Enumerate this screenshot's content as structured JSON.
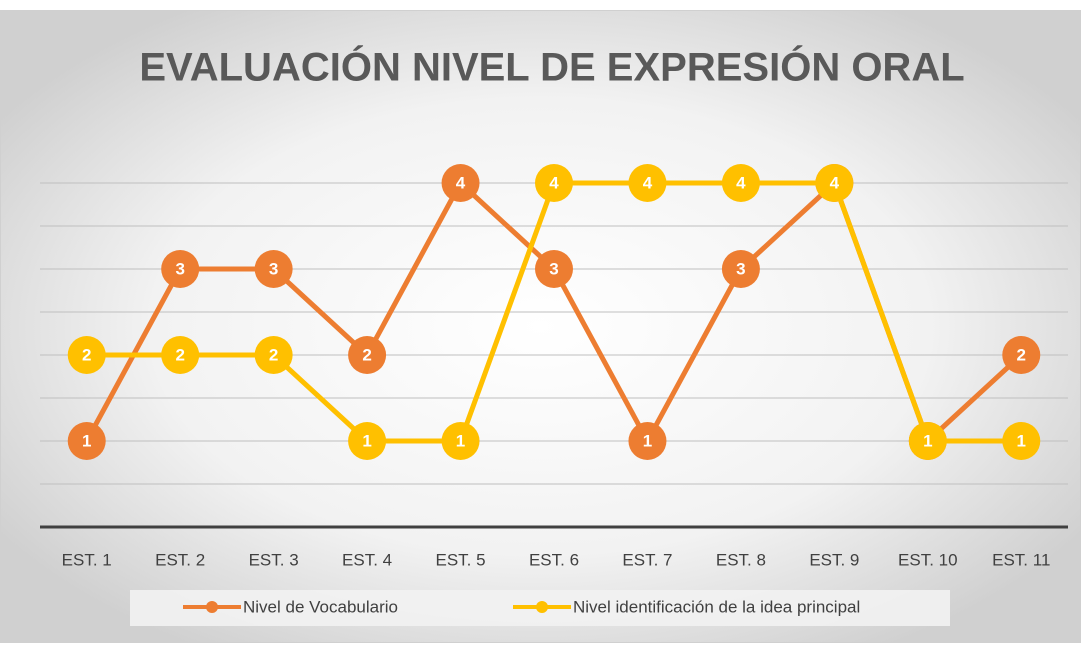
{
  "chart_data": {
    "type": "line",
    "title": "EVALUACIÓN NIVEL DE EXPRESIÓN ORAL",
    "categories": [
      "EST. 1",
      "EST. 2",
      "EST. 3",
      "EST. 4",
      "EST. 5",
      "EST. 6",
      "EST. 7",
      "EST. 8",
      "EST. 9",
      "EST. 10",
      "EST. 11"
    ],
    "series": [
      {
        "name": "Nivel de Vocabulario",
        "color": "#ed7d31",
        "values": [
          1,
          3,
          3,
          2,
          4,
          3,
          1,
          3,
          4,
          1,
          2
        ]
      },
      {
        "name": "Nivel identificación de la idea principal",
        "color": "#ffc000",
        "values": [
          2,
          2,
          2,
          1,
          1,
          4,
          4,
          4,
          4,
          1,
          1
        ]
      }
    ],
    "ylim": [
      0,
      4
    ],
    "yticks": [
      0,
      0.5,
      1,
      1.5,
      2,
      2.5,
      3,
      3.5,
      4
    ],
    "grid": true,
    "legend": "bottom"
  }
}
